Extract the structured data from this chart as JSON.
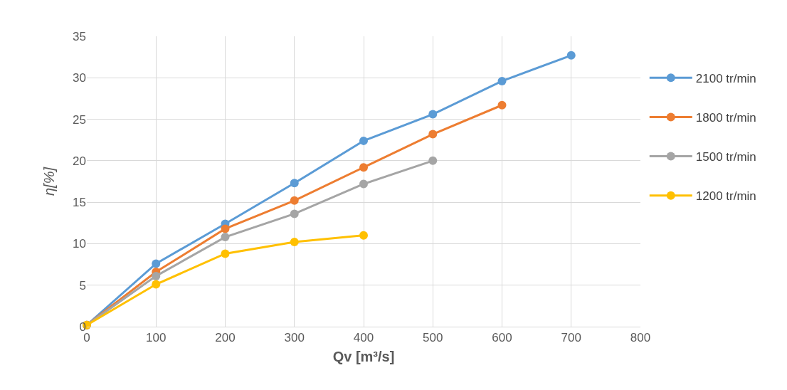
{
  "chart_data": {
    "type": "line",
    "xlabel": "Qv [m³/s]",
    "ylabel": "η[%]",
    "xlim": [
      0,
      800
    ],
    "xticks": [
      0,
      100,
      200,
      300,
      400,
      500,
      600,
      700,
      800
    ],
    "ylim": [
      0,
      35
    ],
    "yticks": [
      0,
      5,
      10,
      15,
      20,
      25,
      30,
      35
    ],
    "grid": true,
    "legend": "right",
    "marker": "circle",
    "line_style": "solid",
    "series": [
      {
        "name": "2100 tr/min",
        "color": "#5b9bd5",
        "x": [
          0,
          100,
          200,
          300,
          400,
          500,
          600,
          700
        ],
        "values": [
          0.2,
          7.6,
          12.4,
          17.3,
          22.4,
          25.6,
          29.6,
          32.7
        ]
      },
      {
        "name": "1800 tr/min",
        "color": "#ed7d31",
        "x": [
          0,
          100,
          200,
          300,
          400,
          500,
          600
        ],
        "values": [
          0.2,
          6.6,
          11.8,
          15.2,
          19.2,
          23.2,
          26.7
        ]
      },
      {
        "name": "1500 tr/min",
        "color": "#a5a5a5",
        "x": [
          0,
          100,
          200,
          300,
          400,
          500
        ],
        "values": [
          0.2,
          6.1,
          10.8,
          13.6,
          17.2,
          20.0
        ]
      },
      {
        "name": "1200 tr/min",
        "color": "#ffc000",
        "x": [
          0,
          100,
          200,
          300,
          400
        ],
        "values": [
          0.2,
          5.1,
          8.8,
          10.2,
          11.0
        ]
      }
    ]
  }
}
